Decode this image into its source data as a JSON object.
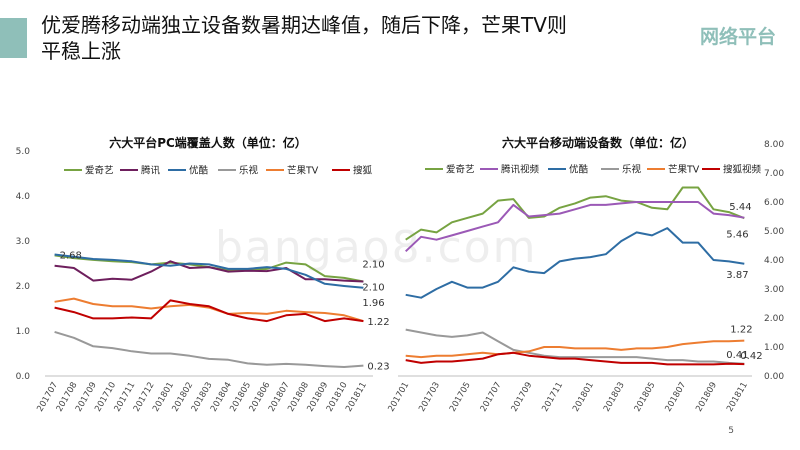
{
  "header": {
    "title_line1": "优爱腾移动端独立设备数暑期达峰值，随后下降，芒果TV则",
    "title_line2": "平稳上涨",
    "brand": "网络平台"
  },
  "footer": {
    "page_number": "5"
  },
  "watermark": "bangao8.com",
  "colors": {
    "accent": "#8fbfb9",
    "iqiyi": "#77a342",
    "tencent": "#6e1f5d",
    "tencent_video": "#9b59b6",
    "youku": "#2e6da4",
    "letv": "#999999",
    "mango": "#ed7d31",
    "sohu": "#c00000"
  },
  "chart_data": [
    {
      "type": "line",
      "title": "六大平台PC端覆盖人数（单位：亿）",
      "categories": [
        "201707",
        "201708",
        "201709",
        "201710",
        "201711",
        "201712",
        "201801",
        "201802",
        "201803",
        "201804",
        "201805",
        "201806",
        "201807",
        "201808",
        "201809",
        "201810",
        "201811"
      ],
      "ylim": [
        0,
        5
      ],
      "yticks": [
        "0.0",
        "1.0",
        "2.0",
        "3.0",
        "4.0",
        "5.0"
      ],
      "legend_position": "top",
      "series": [
        {
          "name": "爱奇艺",
          "color": "#77a342",
          "values": [
            2.68,
            2.62,
            2.58,
            2.55,
            2.53,
            2.48,
            2.52,
            2.48,
            2.42,
            2.35,
            2.35,
            2.38,
            2.52,
            2.48,
            2.22,
            2.18,
            2.1
          ]
        },
        {
          "name": "腾讯",
          "color": "#6e1f5d",
          "values": [
            2.45,
            2.4,
            2.12,
            2.16,
            2.14,
            2.32,
            2.55,
            2.4,
            2.42,
            2.32,
            2.34,
            2.33,
            2.4,
            2.15,
            2.15,
            2.12,
            2.1
          ]
        },
        {
          "name": "优酷",
          "color": "#2e6da4",
          "values": [
            2.7,
            2.65,
            2.6,
            2.58,
            2.55,
            2.48,
            2.45,
            2.5,
            2.48,
            2.38,
            2.38,
            2.42,
            2.38,
            2.25,
            2.05,
            2.0,
            1.96
          ]
        },
        {
          "name": "乐视",
          "color": "#999999",
          "values": [
            0.98,
            0.85,
            0.66,
            0.62,
            0.55,
            0.5,
            0.5,
            0.45,
            0.38,
            0.36,
            0.28,
            0.25,
            0.27,
            0.25,
            0.22,
            0.2,
            0.23
          ]
        },
        {
          "name": "芒果TV",
          "color": "#ed7d31",
          "values": [
            1.65,
            1.72,
            1.6,
            1.55,
            1.55,
            1.5,
            1.55,
            1.58,
            1.52,
            1.38,
            1.4,
            1.38,
            1.45,
            1.42,
            1.4,
            1.35,
            1.22
          ]
        },
        {
          "name": "搜狐",
          "color": "#c00000",
          "values": [
            1.52,
            1.42,
            1.28,
            1.28,
            1.3,
            1.28,
            1.68,
            1.6,
            1.55,
            1.38,
            1.28,
            1.22,
            1.35,
            1.38,
            1.22,
            1.28,
            1.22
          ]
        }
      ],
      "data_labels": [
        {
          "series": "爱奇艺",
          "index": 0,
          "text": "2.68"
        },
        {
          "series": "爱奇艺",
          "index": 16,
          "text": "2.10"
        },
        {
          "series": "腾讯",
          "index": 16,
          "text": "2.10"
        },
        {
          "series": "优酷",
          "index": 16,
          "text": "1.96"
        },
        {
          "series": "芒果TV",
          "index": 16,
          "text": "1.22"
        },
        {
          "series": "乐视",
          "index": 16,
          "text": "0.23"
        }
      ]
    },
    {
      "type": "line",
      "title": "六大平台移动端设备数（单位：亿）",
      "categories": [
        "201701",
        "201702",
        "201703",
        "201704",
        "201705",
        "201706",
        "201707",
        "201708",
        "201709",
        "201710",
        "201711",
        "201712",
        "201801",
        "201802",
        "201803",
        "201804",
        "201805",
        "201806",
        "201807",
        "201808",
        "201809",
        "201810",
        "201811"
      ],
      "xtick_labels": [
        "201701",
        "",
        "201703",
        "",
        "201705",
        "",
        "201707",
        "",
        "201709",
        "",
        "201711",
        "",
        "201801",
        "",
        "201803",
        "",
        "201805",
        "",
        "201807",
        "",
        "201809",
        "",
        "201811"
      ],
      "ylim": [
        0,
        8
      ],
      "yticks": [
        "0.00",
        "1.00",
        "2.00",
        "3.00",
        "4.00",
        "5.00",
        "6.00",
        "7.00",
        "8.00"
      ],
      "legend_position": "top",
      "series": [
        {
          "name": "爱奇艺",
          "color": "#77a342",
          "values": [
            4.7,
            5.05,
            4.95,
            5.3,
            5.45,
            5.6,
            6.05,
            6.1,
            5.45,
            5.5,
            5.8,
            5.95,
            6.15,
            6.2,
            6.05,
            6.0,
            5.8,
            5.75,
            6.5,
            6.5,
            5.75,
            5.65,
            5.44
          ]
        },
        {
          "name": "腾讯视频",
          "color": "#9b59b6",
          "values": [
            4.3,
            4.8,
            4.7,
            4.85,
            5.0,
            5.15,
            5.3,
            5.9,
            5.5,
            5.55,
            5.6,
            5.75,
            5.9,
            5.9,
            5.95,
            6.0,
            6.0,
            6.0,
            6.0,
            6.0,
            5.6,
            5.55,
            5.46
          ]
        },
        {
          "name": "优酷",
          "color": "#2e6da4",
          "values": [
            2.8,
            2.7,
            3.0,
            3.25,
            3.05,
            3.05,
            3.25,
            3.75,
            3.6,
            3.55,
            3.95,
            4.05,
            4.1,
            4.2,
            4.65,
            4.95,
            4.85,
            5.1,
            4.6,
            4.6,
            4.0,
            3.95,
            3.87
          ]
        },
        {
          "name": "乐视",
          "color": "#999999",
          "values": [
            1.6,
            1.5,
            1.4,
            1.35,
            1.4,
            1.5,
            1.2,
            0.9,
            0.8,
            0.7,
            0.65,
            0.65,
            0.65,
            0.65,
            0.65,
            0.65,
            0.6,
            0.55,
            0.55,
            0.5,
            0.5,
            0.45,
            0.42
          ]
        },
        {
          "name": "芒果TV",
          "color": "#ed7d31",
          "values": [
            0.7,
            0.65,
            0.7,
            0.7,
            0.75,
            0.8,
            0.75,
            0.8,
            0.85,
            1.0,
            1.0,
            0.95,
            0.95,
            0.95,
            0.9,
            0.95,
            0.95,
            1.0,
            1.1,
            1.15,
            1.2,
            1.2,
            1.22
          ]
        },
        {
          "name": "搜狐视频",
          "color": "#c00000",
          "values": [
            0.55,
            0.45,
            0.5,
            0.5,
            0.55,
            0.6,
            0.75,
            0.8,
            0.7,
            0.65,
            0.6,
            0.6,
            0.55,
            0.5,
            0.45,
            0.45,
            0.45,
            0.4,
            0.4,
            0.4,
            0.4,
            0.42,
            0.41
          ]
        }
      ],
      "data_labels": [
        {
          "series": "爱奇艺",
          "index": 22,
          "text": "5.44"
        },
        {
          "series": "腾讯视频",
          "index": 22,
          "text": "5.46"
        },
        {
          "series": "优酷",
          "index": 22,
          "text": "3.87"
        },
        {
          "series": "芒果TV",
          "index": 22,
          "text": "1.22"
        },
        {
          "series": "搜狐视频",
          "index": 22,
          "text": "0.41"
        },
        {
          "series": "乐视",
          "index": 22,
          "text": "0.42"
        }
      ]
    }
  ]
}
